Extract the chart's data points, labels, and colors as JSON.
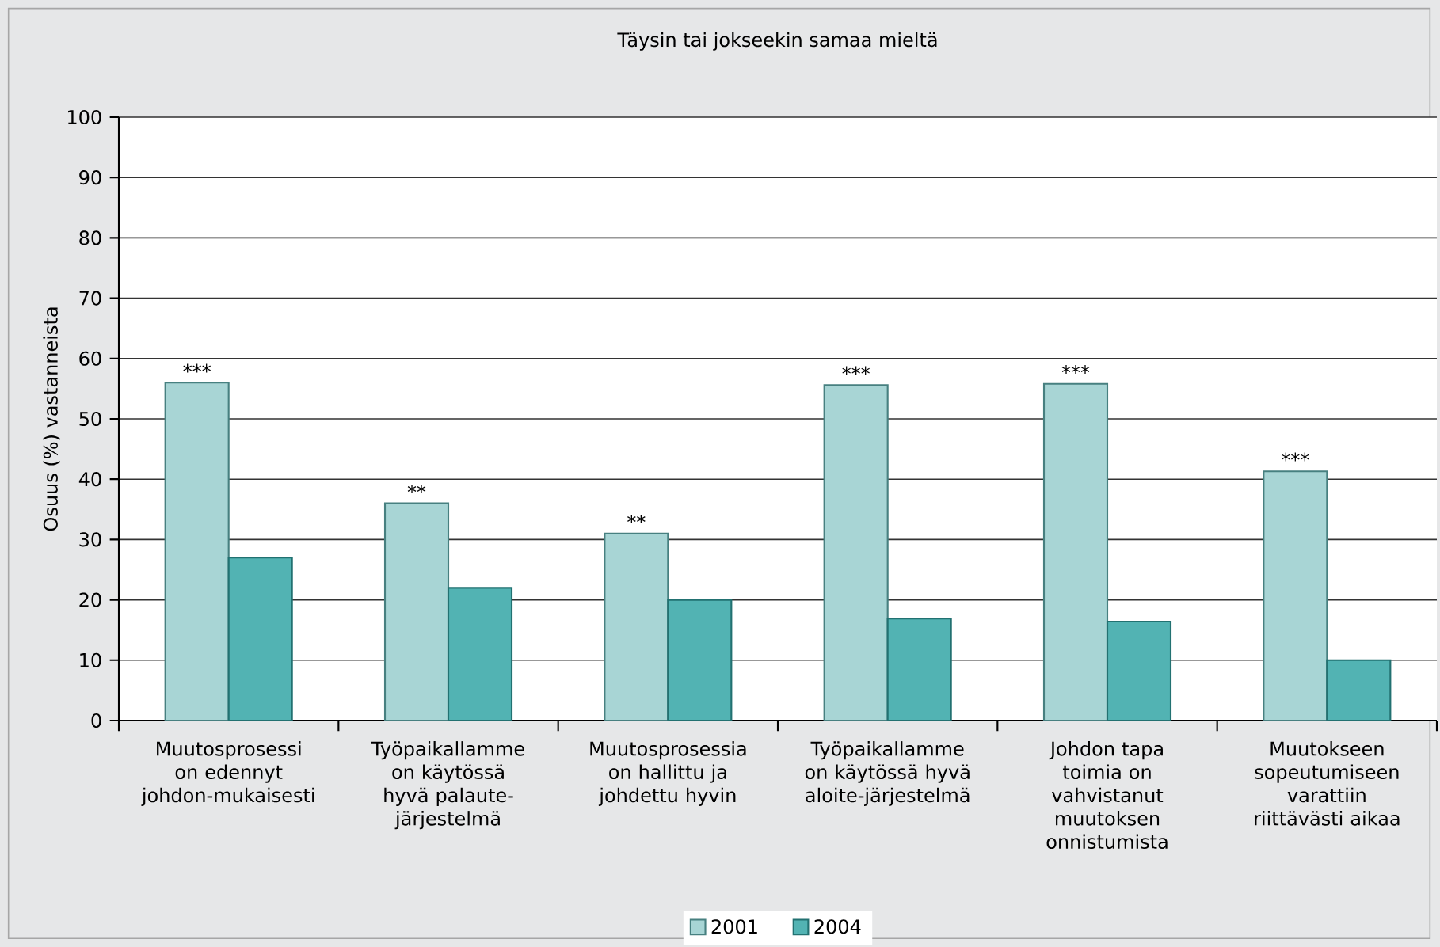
{
  "chart_data": {
    "type": "bar",
    "title": "Täysin tai jokseekin samaa mieltä",
    "ylabel": "Osuus (%) vastanneista",
    "categories": [
      "Muutosprosessi on edennyt johdon-mukaisesti",
      "Työpaikallamme on käytössä hyvä palaute-järjestelmä",
      "Muutosprosessia on hallittu ja johdettu hyvin",
      "Työpaikallamme on käytössä hyvä aloite-järjestelmä",
      "Johdon tapa toimia on vahvistanut muutoksen onnistumista",
      "Muutokseen sopeutumiseen varattiin riittävästi aikaa"
    ],
    "series": [
      {
        "name": "2001",
        "color": "#a8d5d5",
        "values": [
          56,
          36,
          31,
          55.6,
          55.8,
          41.3
        ]
      },
      {
        "name": "2004",
        "color": "#52b3b3",
        "values": [
          27,
          22,
          20,
          16.9,
          16.4,
          10
        ]
      }
    ],
    "ylim": [
      0,
      100
    ],
    "yticks": [
      0,
      10,
      20,
      30,
      40,
      50,
      60,
      70,
      80,
      90,
      100
    ],
    "grid": "y",
    "legend": "bottom",
    "annotations": [
      {
        "text": "***",
        "x": "Muutosprosessi on edennyt johdon-mukaisesti",
        "y": 56
      },
      {
        "text": "**",
        "x": "Työpaikallamme on käytössä hyvä palaute-järjestelmä",
        "y": 36
      },
      {
        "text": "**",
        "x": "Muutosprosessia on hallittu ja johdettu hyvin",
        "y": 31
      },
      {
        "text": "***",
        "x": "Työpaikallamme on käytössä hyvä aloite-järjestelmä",
        "y": 55.6
      },
      {
        "text": "***",
        "x": "Johdon tapa toimia on vahvistanut muutoksen onnistumista",
        "y": 55.8
      },
      {
        "text": "***",
        "x": "Muutokseen sopeutumiseen varattiin riittävästi aikaa",
        "y": 41.3
      }
    ]
  }
}
